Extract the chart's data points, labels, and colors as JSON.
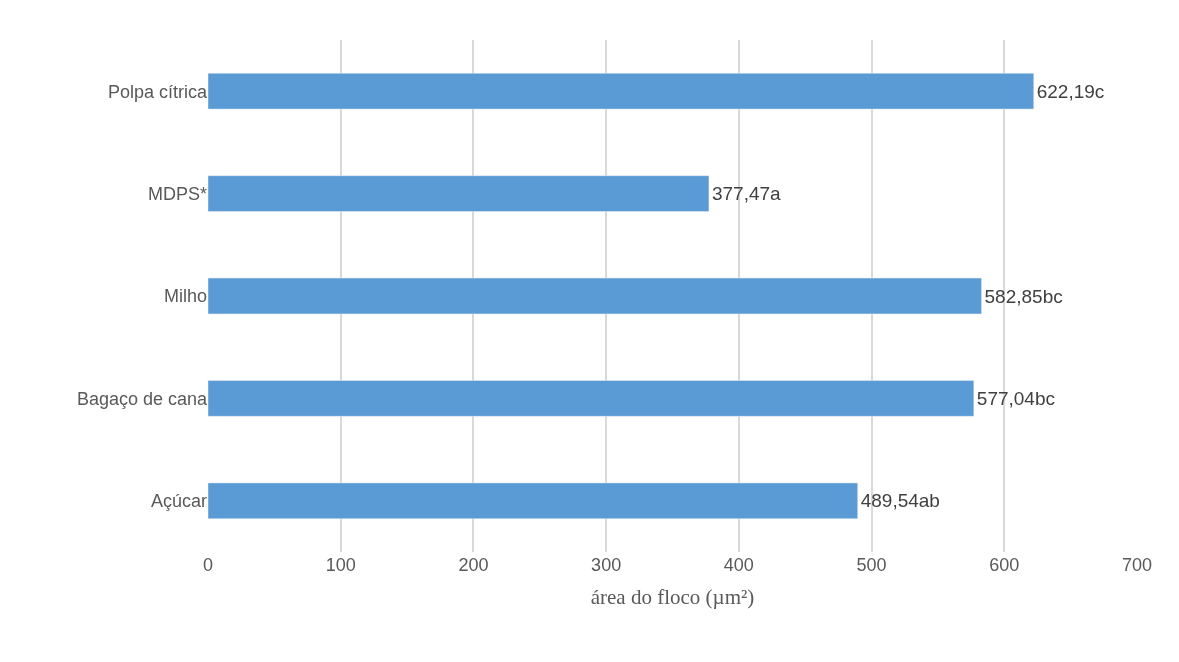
{
  "chart_data": {
    "type": "bar",
    "orientation": "horizontal",
    "xlabel": "área do floco (µm²)",
    "categories": [
      "Polpa cítrica",
      "MDPS*",
      "Milho",
      "Bagaço de cana",
      "Açúcar"
    ],
    "values": [
      622.19,
      377.47,
      582.85,
      577.04,
      489.54
    ],
    "value_labels": [
      "622,19c",
      "377,47a",
      "582,85bc",
      "577,04bc",
      "489,54ab"
    ],
    "color": "#5b9bd5",
    "xlim": [
      0,
      700
    ],
    "xticks": [
      0,
      100,
      200,
      300,
      400,
      500,
      600,
      700
    ],
    "grid": "x"
  }
}
